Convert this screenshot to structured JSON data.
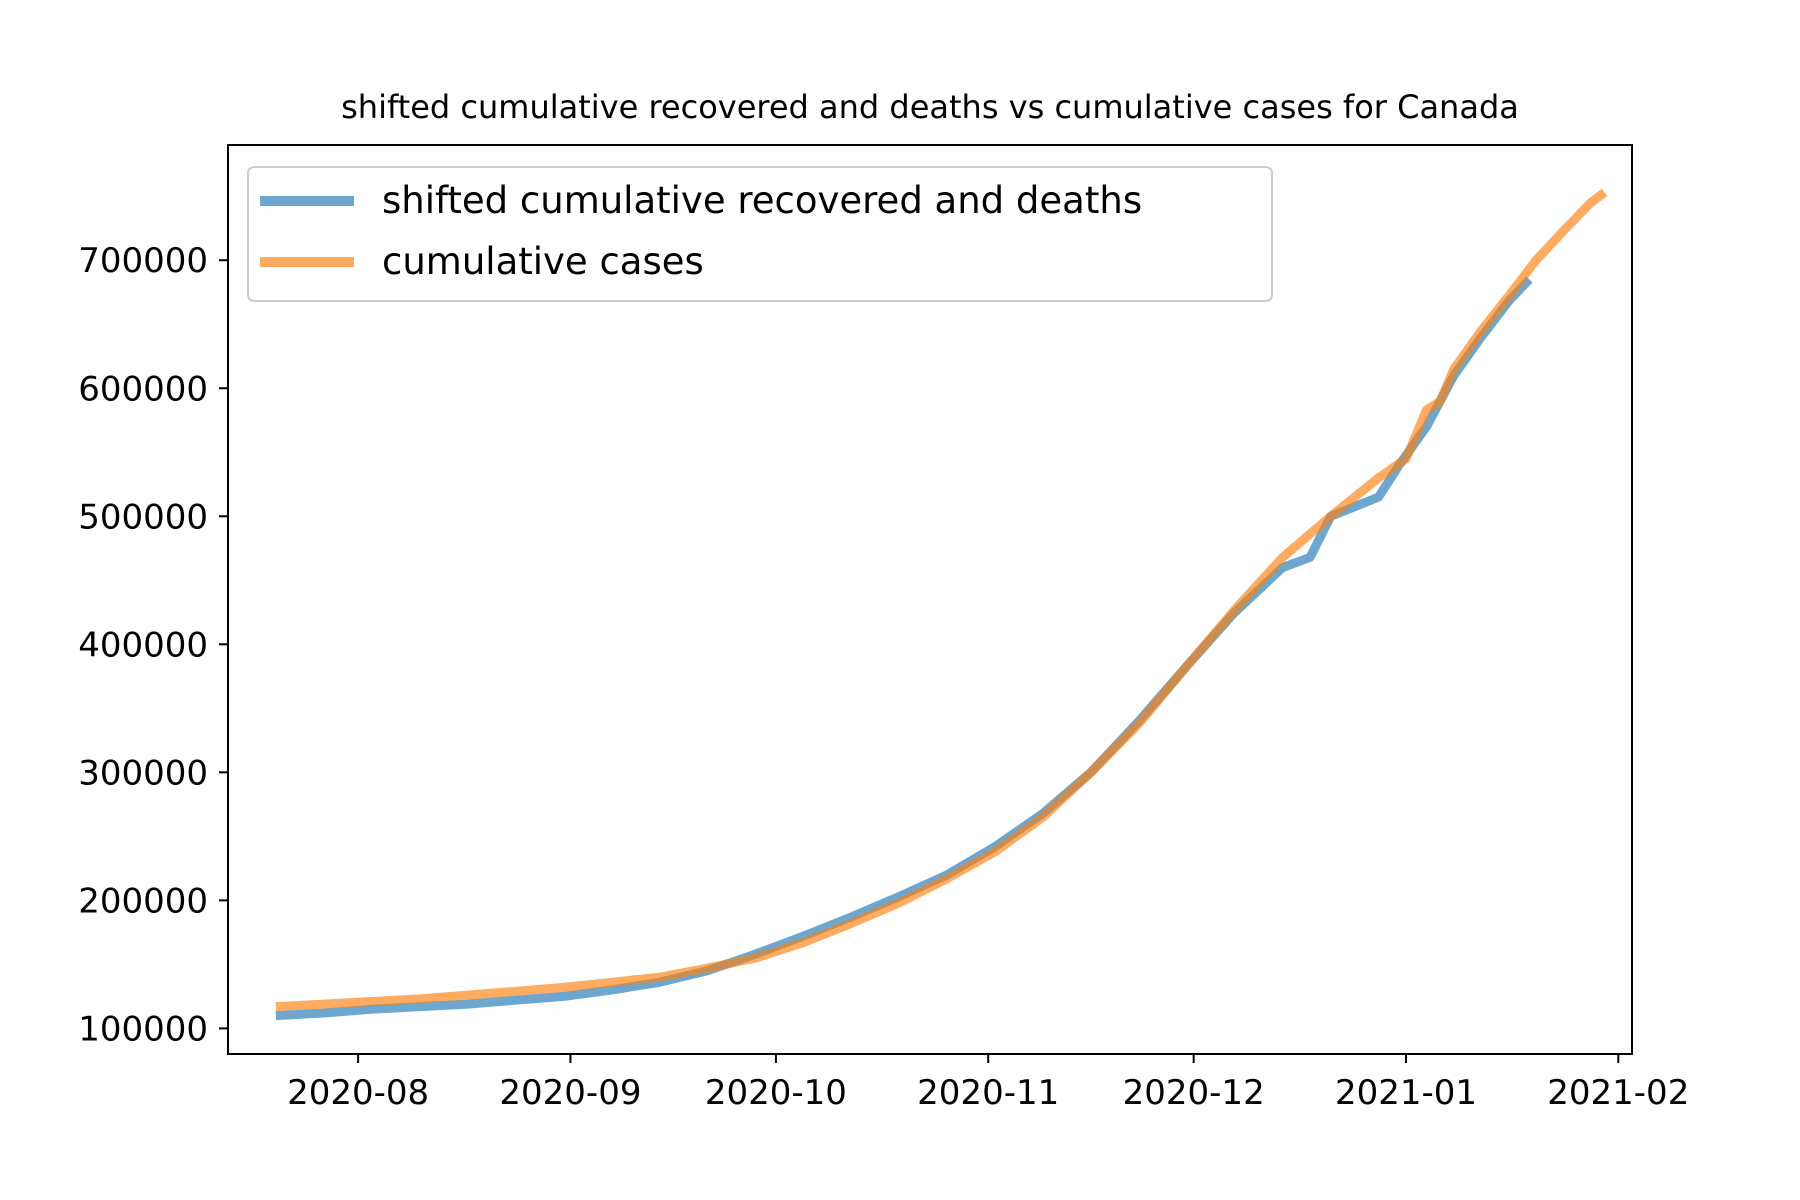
{
  "chart_data": {
    "type": "line",
    "title": "shifted cumulative recovered and deaths vs cumulative cases for Canada",
    "xlabel": "",
    "ylabel": "",
    "x_axis_type": "date",
    "xlim": [
      "2020-07-13",
      "2021-02-03"
    ],
    "ylim": [
      80000,
      790000
    ],
    "x_ticks": [
      {
        "value": "2020-08-01",
        "label": "2020-08"
      },
      {
        "value": "2020-09-01",
        "label": "2020-09"
      },
      {
        "value": "2020-10-01",
        "label": "2020-10"
      },
      {
        "value": "2020-11-01",
        "label": "2020-11"
      },
      {
        "value": "2020-12-01",
        "label": "2020-12"
      },
      {
        "value": "2021-01-01",
        "label": "2021-01"
      },
      {
        "value": "2021-02-01",
        "label": "2021-02"
      }
    ],
    "y_ticks": [
      {
        "value": 100000,
        "label": "100000"
      },
      {
        "value": 200000,
        "label": "200000"
      },
      {
        "value": 300000,
        "label": "300000"
      },
      {
        "value": 400000,
        "label": "400000"
      },
      {
        "value": 500000,
        "label": "500000"
      },
      {
        "value": 600000,
        "label": "600000"
      },
      {
        "value": 700000,
        "label": "700000"
      }
    ],
    "grid": false,
    "legend_position": "top-left",
    "series": [
      {
        "name": "shifted cumulative recovered and deaths",
        "color": "#1f77b4",
        "points": [
          [
            "2020-07-20",
            110000
          ],
          [
            "2020-07-27",
            112000
          ],
          [
            "2020-08-03",
            115000
          ],
          [
            "2020-08-10",
            117000
          ],
          [
            "2020-08-17",
            119000
          ],
          [
            "2020-08-24",
            122000
          ],
          [
            "2020-08-31",
            125000
          ],
          [
            "2020-09-07",
            130000
          ],
          [
            "2020-09-14",
            136000
          ],
          [
            "2020-09-21",
            145000
          ],
          [
            "2020-09-28",
            158000
          ],
          [
            "2020-10-05",
            172000
          ],
          [
            "2020-10-12",
            187000
          ],
          [
            "2020-10-19",
            203000
          ],
          [
            "2020-10-26",
            220000
          ],
          [
            "2020-11-02",
            242000
          ],
          [
            "2020-11-09",
            268000
          ],
          [
            "2020-11-16",
            300000
          ],
          [
            "2020-11-23",
            340000
          ],
          [
            "2020-11-30",
            383000
          ],
          [
            "2020-12-07",
            425000
          ],
          [
            "2020-12-14",
            460000
          ],
          [
            "2020-12-18",
            468000
          ],
          [
            "2020-12-21",
            500000
          ],
          [
            "2020-12-28",
            515000
          ],
          [
            "2020-12-31",
            540000
          ],
          [
            "2021-01-04",
            570000
          ],
          [
            "2021-01-08",
            610000
          ],
          [
            "2021-01-12",
            640000
          ],
          [
            "2021-01-16",
            668000
          ],
          [
            "2021-01-19",
            685000
          ]
        ]
      },
      {
        "name": "cumulative cases",
        "color": "#ff7f0e",
        "points": [
          [
            "2020-07-20",
            117000
          ],
          [
            "2020-07-27",
            119000
          ],
          [
            "2020-08-03",
            121000
          ],
          [
            "2020-08-10",
            123000
          ],
          [
            "2020-08-17",
            126000
          ],
          [
            "2020-08-24",
            129000
          ],
          [
            "2020-08-31",
            132000
          ],
          [
            "2020-09-07",
            136000
          ],
          [
            "2020-09-14",
            140000
          ],
          [
            "2020-09-21",
            147000
          ],
          [
            "2020-09-28",
            155000
          ],
          [
            "2020-10-05",
            167000
          ],
          [
            "2020-10-12",
            182000
          ],
          [
            "2020-10-19",
            198000
          ],
          [
            "2020-10-26",
            217000
          ],
          [
            "2020-11-02",
            238000
          ],
          [
            "2020-11-09",
            265000
          ],
          [
            "2020-11-16",
            300000
          ],
          [
            "2020-11-23",
            338000
          ],
          [
            "2020-11-30",
            383000
          ],
          [
            "2020-12-07",
            427000
          ],
          [
            "2020-12-14",
            468000
          ],
          [
            "2020-12-21",
            500000
          ],
          [
            "2020-12-28",
            530000
          ],
          [
            "2021-01-01",
            545000
          ],
          [
            "2021-01-04",
            583000
          ],
          [
            "2021-01-06",
            590000
          ],
          [
            "2021-01-08",
            615000
          ],
          [
            "2021-01-12",
            645000
          ],
          [
            "2021-01-16",
            672000
          ],
          [
            "2021-01-20",
            700000
          ],
          [
            "2021-01-24",
            723000
          ],
          [
            "2021-01-28",
            745000
          ],
          [
            "2021-01-30",
            753000
          ]
        ]
      }
    ]
  }
}
